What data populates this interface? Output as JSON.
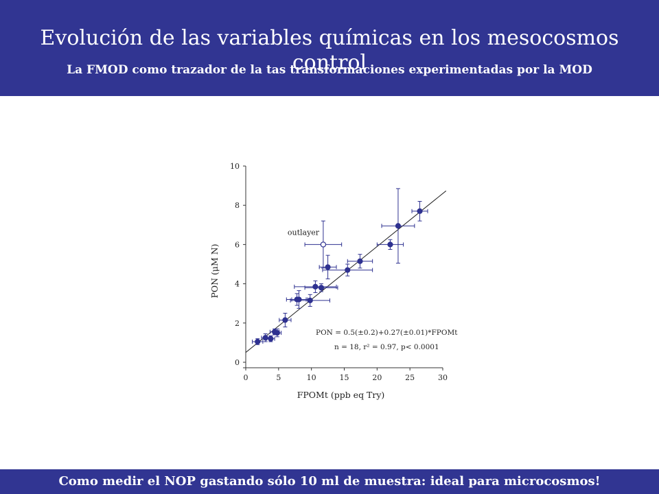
{
  "header": {
    "title": "Evolución de las variables químicas en los mesocosmos control",
    "subtitle": "La FMOD como trazador de la tas transformaciones experimentadas por la MOD"
  },
  "footer": {
    "text": "Como medir el NOP gastando sólo 10 ml de muestra: ideal para microcosmos!"
  },
  "colors": {
    "banner": "#313592",
    "points": "#2e3190",
    "text": "#ffffff"
  },
  "chart_data": {
    "type": "scatter",
    "xlabel": "FPOMt (ppb eq Try)",
    "ylabel": "PON (μM N)",
    "xlim": [
      0,
      30
    ],
    "ylim": [
      0,
      10
    ],
    "xticks": [
      0,
      5,
      10,
      15,
      20,
      25,
      30
    ],
    "yticks": [
      0,
      2,
      4,
      6,
      8,
      10
    ],
    "grid": false,
    "points": [
      {
        "x": 1.8,
        "y": 1.05,
        "xerr": 0.8,
        "yerr": 0.15
      },
      {
        "x": 3.0,
        "y": 1.25,
        "xerr": 0.6,
        "yerr": 0.2
      },
      {
        "x": 3.8,
        "y": 1.2,
        "xerr": 0.6,
        "yerr": 0.15
      },
      {
        "x": 4.4,
        "y": 1.55,
        "xerr": 0.7,
        "yerr": 0.15
      },
      {
        "x": 4.8,
        "y": 1.5,
        "xerr": 0.6,
        "yerr": 0.2
      },
      {
        "x": 6.0,
        "y": 2.15,
        "xerr": 0.9,
        "yerr": 0.35
      },
      {
        "x": 7.8,
        "y": 3.2,
        "xerr": 1.6,
        "yerr": 0.3
      },
      {
        "x": 8.1,
        "y": 3.2,
        "xerr": 1.1,
        "yerr": 0.45
      },
      {
        "x": 9.8,
        "y": 3.15,
        "xerr": 3.0,
        "yerr": 0.3
      },
      {
        "x": 10.6,
        "y": 3.85,
        "xerr": 3.2,
        "yerr": 0.3
      },
      {
        "x": 11.5,
        "y": 3.8,
        "xerr": 2.5,
        "yerr": 0.2
      },
      {
        "x": 12.5,
        "y": 4.85,
        "xerr": 1.3,
        "yerr": 0.6
      },
      {
        "x": 15.5,
        "y": 4.7,
        "xerr": 3.8,
        "yerr": 0.3
      },
      {
        "x": 17.4,
        "y": 5.15,
        "xerr": 1.9,
        "yerr": 0.35
      },
      {
        "x": 22.0,
        "y": 6.0,
        "xerr": 2.0,
        "yerr": 0.25
      },
      {
        "x": 23.2,
        "y": 6.95,
        "xerr": 2.5,
        "yerr": 1.9
      },
      {
        "x": 26.5,
        "y": 7.7,
        "xerr": 1.2,
        "yerr": 0.5
      }
    ],
    "outlier": {
      "x": 11.8,
      "y": 6.0,
      "xerr": 2.8,
      "yerr": 1.2,
      "label": "outlayer"
    },
    "fit": {
      "intercept": 0.5,
      "slope": 0.27,
      "x_range": [
        0,
        30.5
      ]
    },
    "annotations": {
      "equation": "PON = 0.5(±0.2)+0.27(±0.01)*FPOMt",
      "stats": "n = 18, r² = 0.97, p< 0.0001"
    }
  }
}
